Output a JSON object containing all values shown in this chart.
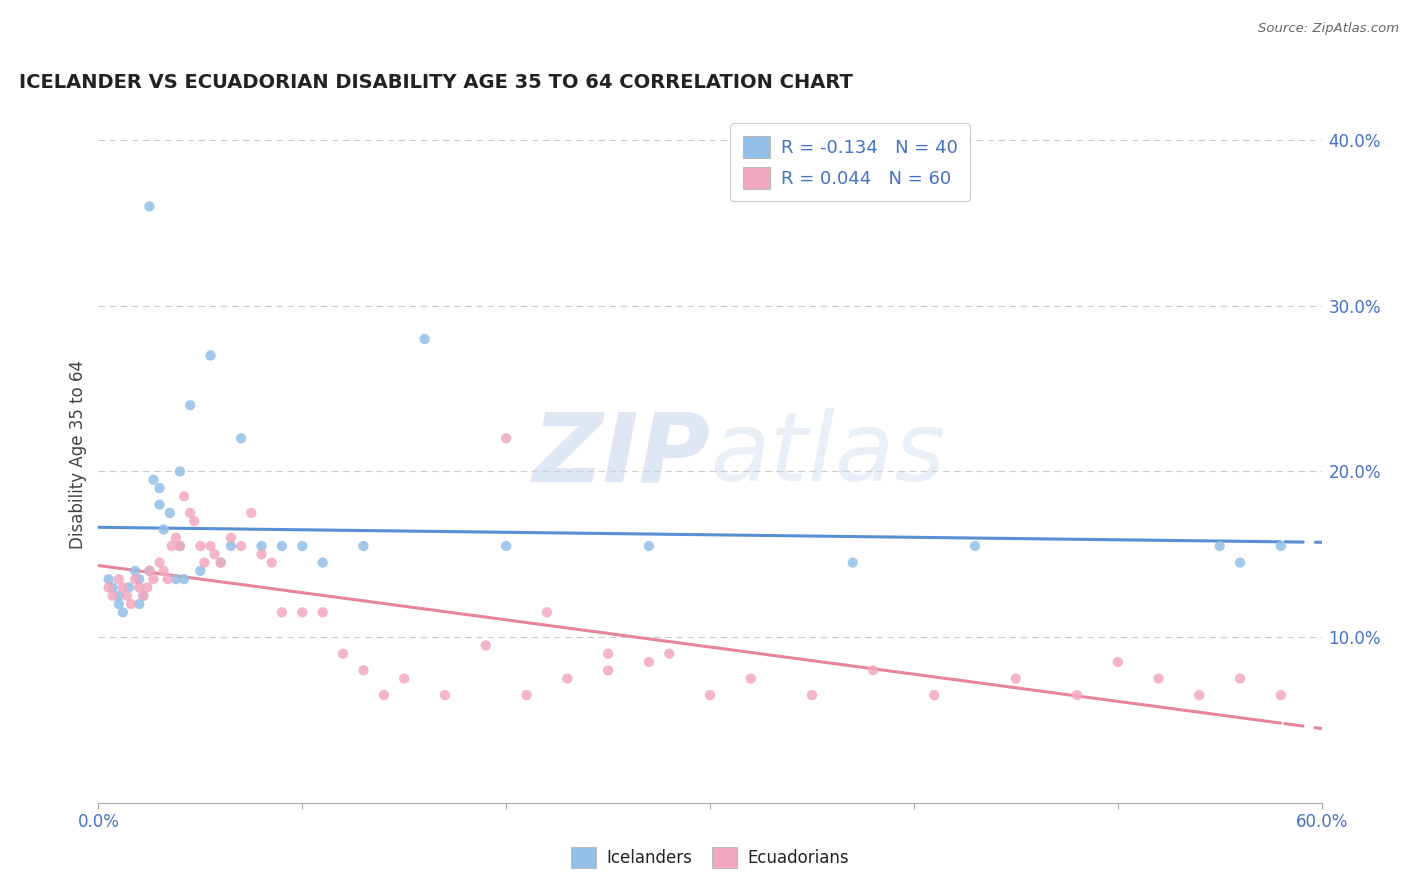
{
  "title": "ICELANDER VS ECUADORIAN DISABILITY AGE 35 TO 64 CORRELATION CHART",
  "source_text": "Source: ZipAtlas.com",
  "ylabel_label": "Disability Age 35 to 64",
  "xlim": [
    0.0,
    0.6
  ],
  "ylim": [
    0.0,
    0.42
  ],
  "y_ticks_right": [
    0.1,
    0.2,
    0.3,
    0.4
  ],
  "y_tick_labels_right": [
    "10.0%",
    "20.0%",
    "30.0%",
    "40.0%"
  ],
  "icelander_color": "#92C0E8",
  "ecuadorian_color": "#F2A8BE",
  "icelander_line_color": "#5B8FD4",
  "ecuadorian_line_color": "#E8849A",
  "icelander_R": -0.134,
  "icelander_N": 40,
  "ecuadorian_R": 0.044,
  "ecuadorian_N": 60,
  "watermark_zip": "ZIP",
  "watermark_atlas": "atlas",
  "grid_color": "#CCCCCC",
  "icelander_scatter_x": [
    0.005,
    0.007,
    0.01,
    0.01,
    0.012,
    0.015,
    0.018,
    0.02,
    0.02,
    0.022,
    0.025,
    0.027,
    0.03,
    0.03,
    0.032,
    0.035,
    0.038,
    0.04,
    0.04,
    0.042,
    0.045,
    0.05,
    0.055,
    0.06,
    0.065,
    0.07,
    0.08,
    0.09,
    0.1,
    0.11,
    0.13,
    0.16,
    0.2,
    0.27,
    0.37,
    0.43,
    0.55,
    0.56,
    0.58,
    0.025
  ],
  "icelander_scatter_y": [
    0.135,
    0.13,
    0.125,
    0.12,
    0.115,
    0.13,
    0.14,
    0.135,
    0.12,
    0.125,
    0.14,
    0.195,
    0.18,
    0.19,
    0.165,
    0.175,
    0.135,
    0.155,
    0.2,
    0.135,
    0.24,
    0.14,
    0.27,
    0.145,
    0.155,
    0.22,
    0.155,
    0.155,
    0.155,
    0.145,
    0.155,
    0.28,
    0.155,
    0.155,
    0.145,
    0.155,
    0.155,
    0.145,
    0.155,
    0.36
  ],
  "ecuadorian_scatter_x": [
    0.005,
    0.007,
    0.01,
    0.012,
    0.014,
    0.016,
    0.018,
    0.02,
    0.022,
    0.024,
    0.025,
    0.027,
    0.03,
    0.032,
    0.034,
    0.036,
    0.038,
    0.04,
    0.042,
    0.045,
    0.047,
    0.05,
    0.052,
    0.055,
    0.057,
    0.06,
    0.065,
    0.07,
    0.075,
    0.08,
    0.085,
    0.09,
    0.1,
    0.11,
    0.12,
    0.13,
    0.14,
    0.15,
    0.17,
    0.19,
    0.21,
    0.23,
    0.25,
    0.27,
    0.3,
    0.32,
    0.35,
    0.38,
    0.41,
    0.45,
    0.48,
    0.5,
    0.52,
    0.54,
    0.56,
    0.58,
    0.2,
    0.22,
    0.25,
    0.28
  ],
  "ecuadorian_scatter_y": [
    0.13,
    0.125,
    0.135,
    0.13,
    0.125,
    0.12,
    0.135,
    0.13,
    0.125,
    0.13,
    0.14,
    0.135,
    0.145,
    0.14,
    0.135,
    0.155,
    0.16,
    0.155,
    0.185,
    0.175,
    0.17,
    0.155,
    0.145,
    0.155,
    0.15,
    0.145,
    0.16,
    0.155,
    0.175,
    0.15,
    0.145,
    0.115,
    0.115,
    0.115,
    0.09,
    0.08,
    0.065,
    0.075,
    0.065,
    0.095,
    0.065,
    0.075,
    0.08,
    0.085,
    0.065,
    0.075,
    0.065,
    0.08,
    0.065,
    0.075,
    0.065,
    0.085,
    0.075,
    0.065,
    0.075,
    0.065,
    0.22,
    0.115,
    0.09,
    0.09
  ]
}
